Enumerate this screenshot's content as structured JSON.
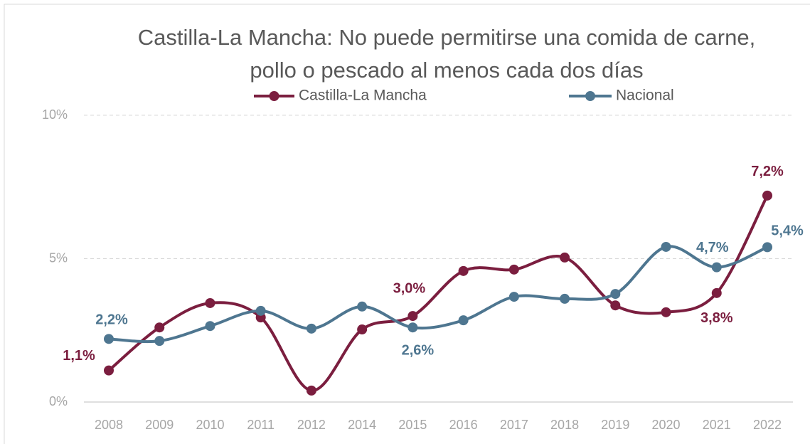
{
  "chart_data": {
    "type": "line",
    "title": "Castilla-La Mancha: No puede permitirse una comida de carne, pollo o pescado al menos cada dos días",
    "categories": [
      "2008",
      "2009",
      "2010",
      "2011",
      "2012",
      "2014",
      "2015",
      "2016",
      "2017",
      "2018",
      "2019",
      "2020",
      "2021",
      "2022"
    ],
    "series": [
      {
        "name": "Castilla-La Mancha",
        "color": "#7b1e3f",
        "values": [
          1.1,
          2.6,
          3.45,
          2.95,
          0.4,
          2.53,
          3.0,
          4.57,
          4.62,
          5.04,
          3.37,
          3.13,
          3.8,
          7.2
        ],
        "value_labels": [
          "1,1%",
          null,
          null,
          null,
          null,
          null,
          "3,0%",
          null,
          null,
          null,
          null,
          null,
          "3,8%",
          "7,2%"
        ]
      },
      {
        "name": "Nacional",
        "color": "#4e7690",
        "values": [
          2.2,
          2.13,
          2.65,
          3.18,
          2.56,
          3.33,
          2.6,
          2.85,
          3.67,
          3.6,
          3.77,
          5.41,
          4.7,
          5.4
        ],
        "value_labels": [
          "2,2%",
          null,
          null,
          null,
          null,
          null,
          "2,6%",
          null,
          null,
          null,
          null,
          null,
          "4,7%",
          "5,4%"
        ]
      }
    ],
    "ylim": [
      0,
      10
    ],
    "yticks": [
      {
        "value": 0,
        "label": "0%"
      },
      {
        "value": 5,
        "label": "5%"
      },
      {
        "value": 10,
        "label": "10%"
      }
    ],
    "grid": true,
    "legend": "top"
  }
}
